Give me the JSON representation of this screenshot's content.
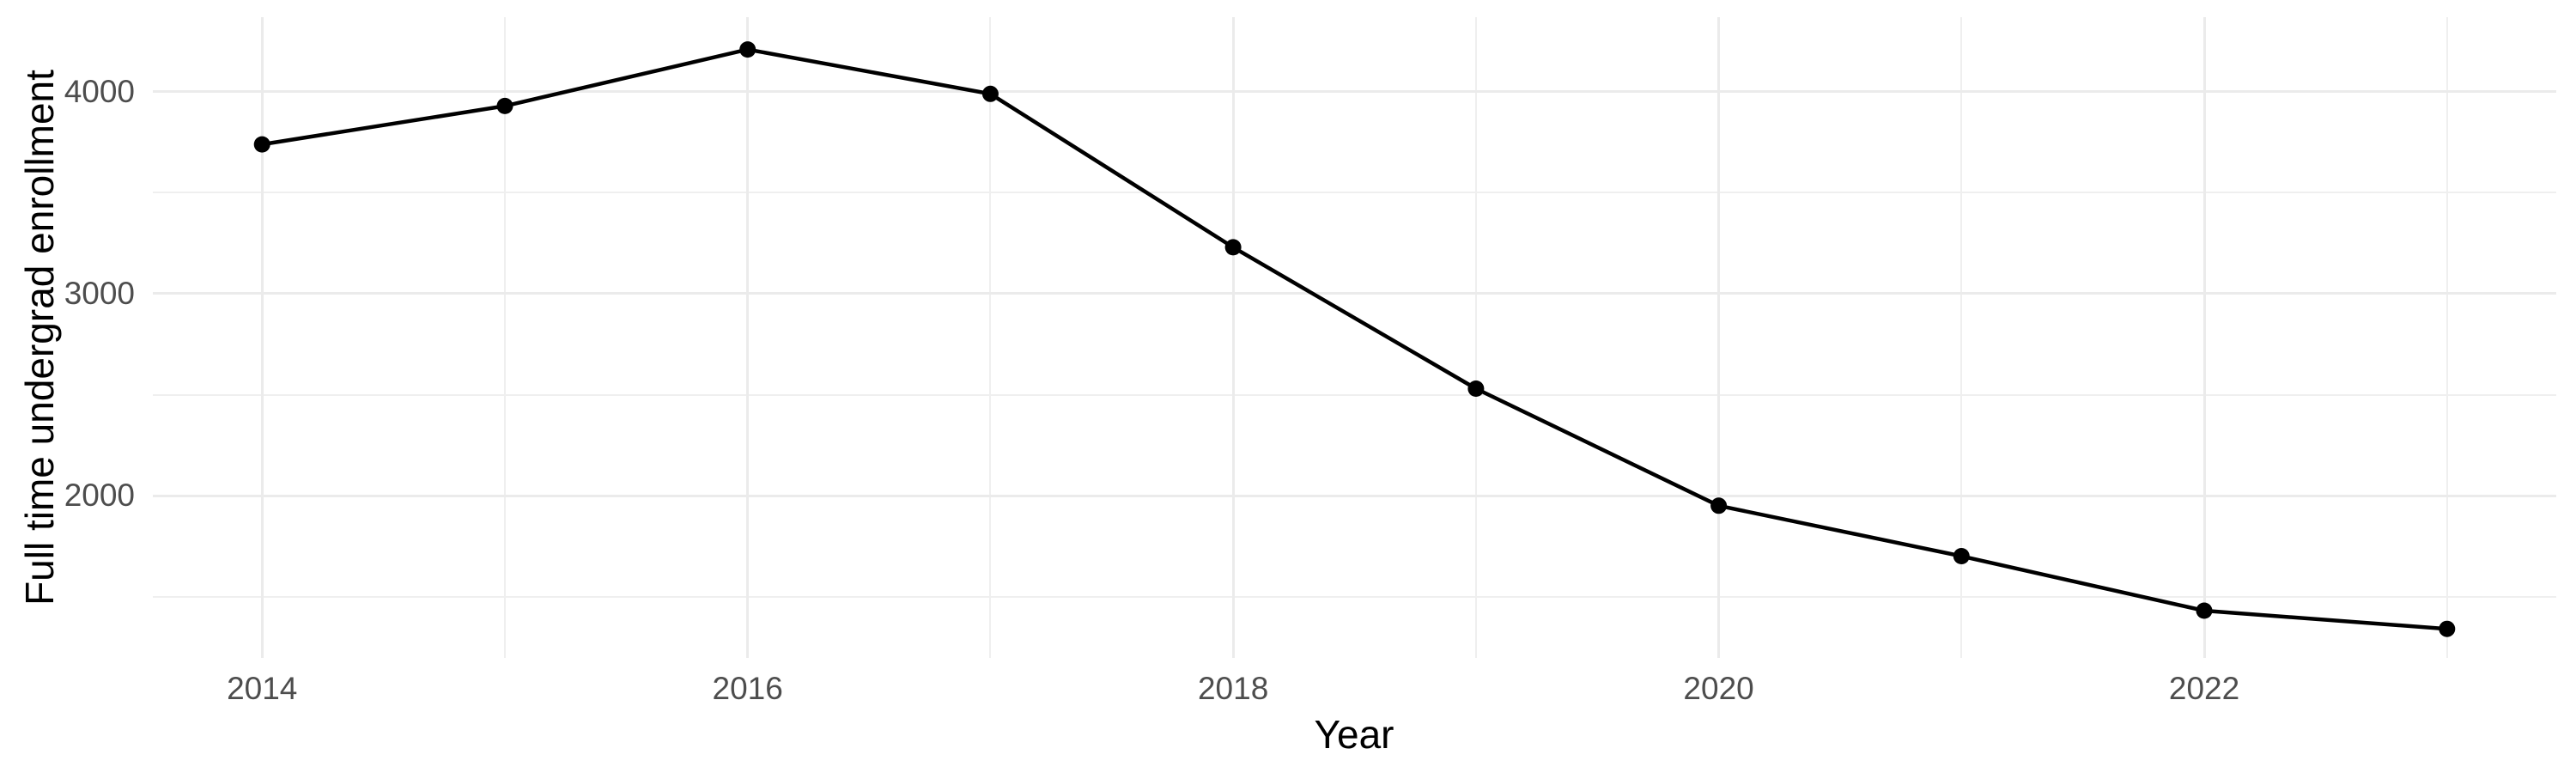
{
  "chart_data": {
    "type": "line",
    "title": "",
    "xlabel": "Year",
    "ylabel": "Full time undergrad enrollment",
    "x": [
      2014,
      2015,
      2016,
      2017,
      2018,
      2019,
      2020,
      2021,
      2022,
      2023
    ],
    "series": [
      {
        "name": "Full time undergrad enrollment",
        "values": [
          3740,
          3930,
          4210,
          3990,
          3230,
          2530,
          1950,
          1700,
          1430,
          1340
        ]
      }
    ],
    "xlim": [
      2013.55,
      2023.45
    ],
    "ylim": [
      1196,
      4370
    ],
    "x_major_ticks": [
      2014,
      2016,
      2018,
      2020,
      2022
    ],
    "x_minor_ticks": [
      2015,
      2017,
      2019,
      2021,
      2023
    ],
    "y_major_ticks": [
      2000,
      3000,
      4000
    ],
    "y_minor_ticks": [
      1500,
      2500,
      3500
    ],
    "grid": "on",
    "legend": "none",
    "style": {
      "background": "#FFFFFF",
      "grid_major_color": "#EBEBEB",
      "grid_minor_color": "#EFEFEF",
      "line_color": "#000000",
      "point_color": "#000000",
      "tick_label_color": "#4D4D4D",
      "axis_title_color": "#000000"
    }
  }
}
